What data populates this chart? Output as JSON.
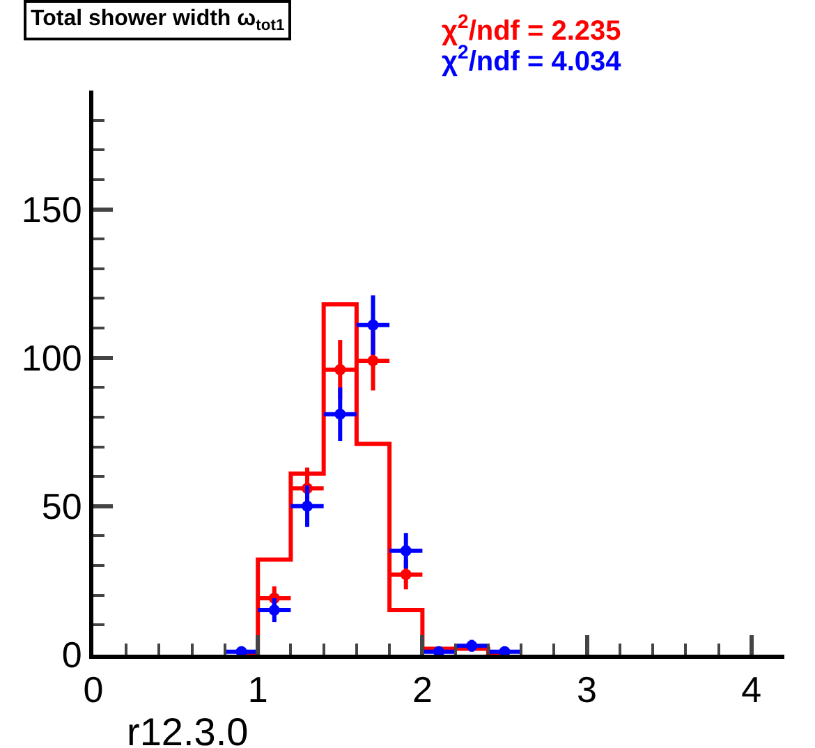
{
  "chart_data": {
    "type": "step",
    "title": "Total shower width ω$_{tot1}$",
    "annotations": [
      "χ$^{2}$/ndf = 2.235",
      "χ$^{2}$/ndf = 4.034",
      "r12.3.0"
    ],
    "series": [
      {
        "color": "#ff0000",
        "x": [
          0.9,
          1.1,
          1.3,
          1.5,
          1.7,
          1.9,
          2.1,
          2.3,
          2.5
        ],
        "values": [
          0,
          32,
          61,
          118,
          71,
          15,
          2,
          2,
          0
        ]
      },
      {
        "type": "scatter",
        "marker": "circle",
        "color": "#ff0000",
        "x": [
          1.1,
          1.3,
          1.5,
          1.7,
          1.9
        ],
        "values": [
          19,
          56,
          96,
          99,
          27
        ],
        "errors": [
          4,
          7,
          10,
          10,
          5
        ],
        "xerrors": [
          0.1,
          0.1,
          0.1,
          0.1,
          0.1
        ]
      },
      {
        "type": "scatter",
        "marker": "circle",
        "color": "#0000ff",
        "x": [
          0.9,
          1.1,
          1.3,
          1.5,
          1.7,
          1.9,
          2.1,
          2.3,
          2.5
        ],
        "values": [
          1,
          15,
          50,
          81,
          111,
          35,
          1,
          3,
          1
        ],
        "errors": [
          1,
          4,
          7,
          9,
          10,
          6,
          1,
          2,
          1
        ],
        "xerrors": [
          0.1,
          0.1,
          0.1,
          0.1,
          0.1,
          0.1,
          0.1,
          0.1,
          0.1
        ]
      }
    ],
    "xlim": [
      0,
      4.2
    ],
    "ylim": [
      0,
      190
    ],
    "xticks": [
      0,
      1,
      2,
      3,
      4
    ],
    "yticks": [
      0,
      50,
      100,
      150
    ]
  }
}
